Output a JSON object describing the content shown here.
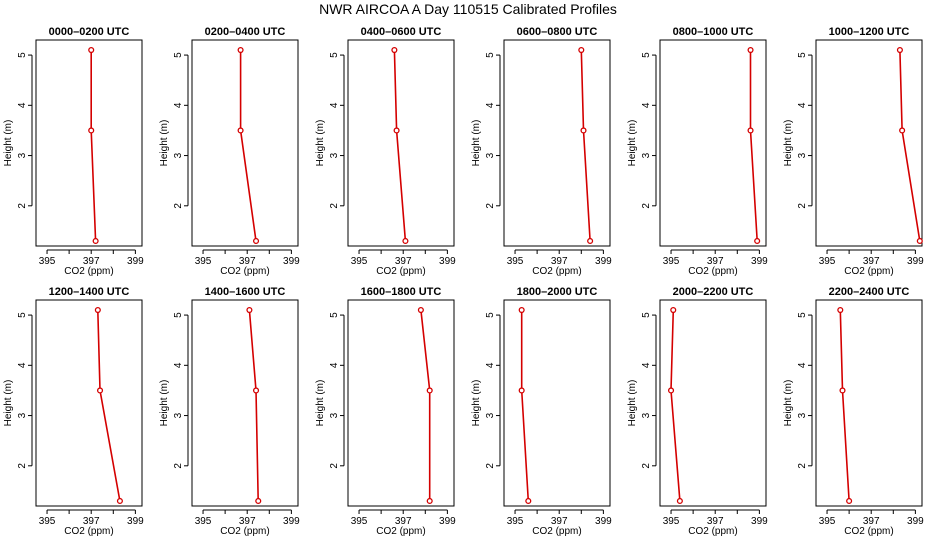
{
  "figure": {
    "title": "NWR AIRCOA A  Day 110515  Calibrated Profiles",
    "colors": {
      "series": "#d40000",
      "axes": "#000000"
    }
  },
  "chart_data": [
    {
      "type": "line",
      "title": "0000–0200 UTC",
      "xlabel": "CO2 (ppm)",
      "ylabel": "Height (m)",
      "xlim": [
        394.5,
        399.3
      ],
      "ylim": [
        1.2,
        5.3
      ],
      "xticks": [
        395,
        396,
        397,
        398,
        399
      ],
      "xticklabels": [
        "395",
        "",
        "397",
        "",
        "399"
      ],
      "yticks": [
        2,
        3,
        4,
        5
      ],
      "points": [
        {
          "x": 397.2,
          "y": 1.3
        },
        {
          "x": 397.0,
          "y": 3.5
        },
        {
          "x": 397.0,
          "y": 5.1
        }
      ]
    },
    {
      "type": "line",
      "title": "0200–0400 UTC",
      "xlabel": "CO2 (ppm)",
      "ylabel": "Height (m)",
      "xlim": [
        394.5,
        399.3
      ],
      "ylim": [
        1.2,
        5.3
      ],
      "xticks": [
        395,
        396,
        397,
        398,
        399
      ],
      "xticklabels": [
        "395",
        "",
        "397",
        "",
        "399"
      ],
      "yticks": [
        2,
        3,
        4,
        5
      ],
      "points": [
        {
          "x": 397.4,
          "y": 1.3
        },
        {
          "x": 396.7,
          "y": 3.5
        },
        {
          "x": 396.7,
          "y": 5.1
        }
      ]
    },
    {
      "type": "line",
      "title": "0400–0600 UTC",
      "xlabel": "CO2 (ppm)",
      "ylabel": "Height (m)",
      "xlim": [
        394.5,
        399.3
      ],
      "ylim": [
        1.2,
        5.3
      ],
      "xticks": [
        395,
        396,
        397,
        398,
        399
      ],
      "xticklabels": [
        "395",
        "",
        "397",
        "",
        "399"
      ],
      "yticks": [
        2,
        3,
        4,
        5
      ],
      "points": [
        {
          "x": 397.1,
          "y": 1.3
        },
        {
          "x": 396.7,
          "y": 3.5
        },
        {
          "x": 396.6,
          "y": 5.1
        }
      ]
    },
    {
      "type": "line",
      "title": "0600–0800 UTC",
      "xlabel": "CO2 (ppm)",
      "ylabel": "Height (m)",
      "xlim": [
        394.5,
        399.3
      ],
      "ylim": [
        1.2,
        5.3
      ],
      "xticks": [
        395,
        396,
        397,
        398,
        399
      ],
      "xticklabels": [
        "395",
        "",
        "397",
        "",
        "399"
      ],
      "yticks": [
        2,
        3,
        4,
        5
      ],
      "points": [
        {
          "x": 398.4,
          "y": 1.3
        },
        {
          "x": 398.1,
          "y": 3.5
        },
        {
          "x": 398.0,
          "y": 5.1
        }
      ]
    },
    {
      "type": "line",
      "title": "0800–1000 UTC",
      "xlabel": "CO2 (ppm)",
      "ylabel": "Height (m)",
      "xlim": [
        394.5,
        399.3
      ],
      "ylim": [
        1.2,
        5.3
      ],
      "xticks": [
        395,
        396,
        397,
        398,
        399
      ],
      "xticklabels": [
        "395",
        "",
        "397",
        "",
        "399"
      ],
      "yticks": [
        2,
        3,
        4,
        5
      ],
      "points": [
        {
          "x": 398.9,
          "y": 1.3
        },
        {
          "x": 398.6,
          "y": 3.5
        },
        {
          "x": 398.6,
          "y": 5.1
        }
      ]
    },
    {
      "type": "line",
      "title": "1000–1200 UTC",
      "xlabel": "CO2 (ppm)",
      "ylabel": "Height (m)",
      "xlim": [
        394.5,
        399.3
      ],
      "ylim": [
        1.2,
        5.3
      ],
      "xticks": [
        395,
        396,
        397,
        398,
        399
      ],
      "xticklabels": [
        "395",
        "",
        "397",
        "",
        "399"
      ],
      "yticks": [
        2,
        3,
        4,
        5
      ],
      "points": [
        {
          "x": 399.2,
          "y": 1.3
        },
        {
          "x": 398.4,
          "y": 3.5
        },
        {
          "x": 398.3,
          "y": 5.1
        }
      ]
    },
    {
      "type": "line",
      "title": "1200–1400 UTC",
      "xlabel": "CO2 (ppm)",
      "ylabel": "Height (m)",
      "xlim": [
        394.5,
        399.3
      ],
      "ylim": [
        1.2,
        5.3
      ],
      "xticks": [
        395,
        396,
        397,
        398,
        399
      ],
      "xticklabels": [
        "395",
        "",
        "397",
        "",
        "399"
      ],
      "yticks": [
        2,
        3,
        4,
        5
      ],
      "points": [
        {
          "x": 398.3,
          "y": 1.3
        },
        {
          "x": 397.4,
          "y": 3.5
        },
        {
          "x": 397.3,
          "y": 5.1
        }
      ]
    },
    {
      "type": "line",
      "title": "1400–1600 UTC",
      "xlabel": "CO2 (ppm)",
      "ylabel": "Height (m)",
      "xlim": [
        394.5,
        399.3
      ],
      "ylim": [
        1.2,
        5.3
      ],
      "xticks": [
        395,
        396,
        397,
        398,
        399
      ],
      "xticklabels": [
        "395",
        "",
        "397",
        "",
        "399"
      ],
      "yticks": [
        2,
        3,
        4,
        5
      ],
      "points": [
        {
          "x": 397.5,
          "y": 1.3
        },
        {
          "x": 397.4,
          "y": 3.5
        },
        {
          "x": 397.1,
          "y": 5.1
        }
      ]
    },
    {
      "type": "line",
      "title": "1600–1800 UTC",
      "xlabel": "CO2 (ppm)",
      "ylabel": "Height (m)",
      "xlim": [
        394.5,
        399.3
      ],
      "ylim": [
        1.2,
        5.3
      ],
      "xticks": [
        395,
        396,
        397,
        398,
        399
      ],
      "xticklabels": [
        "395",
        "",
        "397",
        "",
        "399"
      ],
      "yticks": [
        2,
        3,
        4,
        5
      ],
      "points": [
        {
          "x": 398.2,
          "y": 1.3
        },
        {
          "x": 398.2,
          "y": 3.5
        },
        {
          "x": 397.8,
          "y": 5.1
        }
      ]
    },
    {
      "type": "line",
      "title": "1800–2000 UTC",
      "xlabel": "CO2 (ppm)",
      "ylabel": "Height (m)",
      "xlim": [
        394.5,
        399.3
      ],
      "ylim": [
        1.2,
        5.3
      ],
      "xticks": [
        395,
        396,
        397,
        398,
        399
      ],
      "xticklabels": [
        "395",
        "",
        "397",
        "",
        "399"
      ],
      "yticks": [
        2,
        3,
        4,
        5
      ],
      "points": [
        {
          "x": 395.6,
          "y": 1.3
        },
        {
          "x": 395.3,
          "y": 3.5
        },
        {
          "x": 395.3,
          "y": 5.1
        }
      ]
    },
    {
      "type": "line",
      "title": "2000–2200 UTC",
      "xlabel": "CO2 (ppm)",
      "ylabel": "Height (m)",
      "xlim": [
        394.5,
        399.3
      ],
      "ylim": [
        1.2,
        5.3
      ],
      "xticks": [
        395,
        396,
        397,
        398,
        399
      ],
      "xticklabels": [
        "395",
        "",
        "397",
        "",
        "399"
      ],
      "yticks": [
        2,
        3,
        4,
        5
      ],
      "points": [
        {
          "x": 395.4,
          "y": 1.3
        },
        {
          "x": 395.0,
          "y": 3.5
        },
        {
          "x": 395.1,
          "y": 5.1
        }
      ]
    },
    {
      "type": "line",
      "title": "2200–2400 UTC",
      "xlabel": "CO2 (ppm)",
      "ylabel": "Height (m)",
      "xlim": [
        394.5,
        399.3
      ],
      "ylim": [
        1.2,
        5.3
      ],
      "xticks": [
        395,
        396,
        397,
        398,
        399
      ],
      "xticklabels": [
        "395",
        "",
        "397",
        "",
        "399"
      ],
      "yticks": [
        2,
        3,
        4,
        5
      ],
      "points": [
        {
          "x": 396.0,
          "y": 1.3
        },
        {
          "x": 395.7,
          "y": 3.5
        },
        {
          "x": 395.6,
          "y": 5.1
        }
      ]
    }
  ]
}
